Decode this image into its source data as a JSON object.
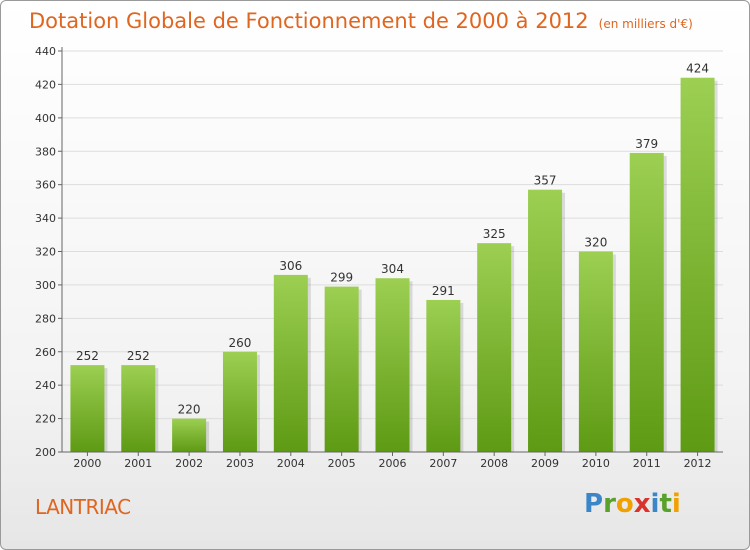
{
  "header": {
    "title": "Dotation Globale de Fonctionnement de 2000 à 2012",
    "subtitle": "(en milliers d'€)"
  },
  "footer": {
    "place": "LANTRIAC",
    "brand": [
      "P",
      "r",
      "o",
      "x",
      "i",
      "t",
      "i"
    ]
  },
  "colors": {
    "title": "#e0651f",
    "bar_top": "#9ccf52",
    "bar_bottom": "#5e9a14",
    "axis": "#666666"
  },
  "chart_data": {
    "type": "bar",
    "title": "Dotation Globale de Fonctionnement de 2000 à 2012",
    "subtitle": "(en milliers d'€)",
    "categories": [
      "2000",
      "2001",
      "2002",
      "2003",
      "2004",
      "2005",
      "2006",
      "2007",
      "2008",
      "2009",
      "2010",
      "2011",
      "2012"
    ],
    "values": [
      252,
      252,
      220,
      260,
      306,
      299,
      304,
      291,
      325,
      357,
      320,
      379,
      424
    ],
    "ylim": [
      200,
      440
    ],
    "yticks": [
      200,
      220,
      240,
      260,
      280,
      300,
      320,
      340,
      360,
      380,
      400,
      420,
      440
    ],
    "grid": true,
    "xlabel": "",
    "ylabel": ""
  }
}
